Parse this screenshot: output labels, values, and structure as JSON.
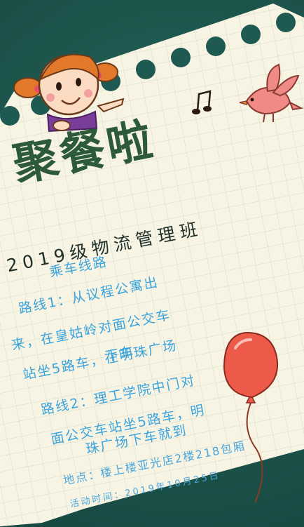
{
  "poster": {
    "title": "聚餐啦",
    "subtitle": "2019级物流管理班",
    "route_heading": "乘车线路",
    "route1_lines": [
      "路线1：从议程公寓出",
      "来，在皇姑岭对面公交车",
      "站坐5路车，在明珠广场",
      "下车"
    ],
    "route2_lines": [
      "路线2：理工学院中门对",
      "面公交车站坐5路车，明",
      "珠广场下车就到"
    ],
    "location": "地点：楼上楼亚光店2楼218包厢",
    "event_time": "活动时间：2019年10月25日"
  },
  "colors": {
    "background": "#1e5a52",
    "paper": "#f7f4e4",
    "grid": "#d9dccc",
    "title": "#2d5a3a",
    "route_text": "#3aa4de",
    "balloon": "#ee5a4a",
    "bird": "#ef8a86"
  },
  "decorations": {
    "girl": "cartoon-girl-illustration",
    "bird": "bird-illustration",
    "music_note": "music-note-icon",
    "balloon": "balloon-illustration"
  }
}
